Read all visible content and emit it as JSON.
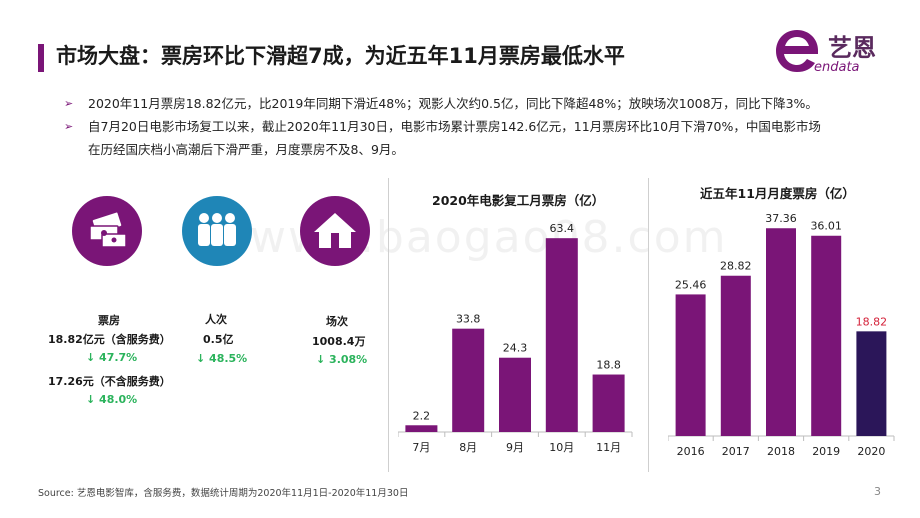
{
  "header": {
    "title": "市场大盘：票房环比下滑超7成，为近五年11月票房最低水平"
  },
  "logo": {
    "name": "艺恩",
    "sub": "endata"
  },
  "watermark": "www.baogao08.com",
  "bullets": [
    {
      "lines": [
        "2020年11月票房18.82亿元，比2019年同期下滑近48%；观影人次约0.5亿，同比下降超48%；放映场次1008万，同比下降3%。"
      ]
    },
    {
      "lines": [
        "自7月20日电影市场复工以来，截止2020年11月30日，电影市场累计票房142.6亿元，11月票房环比10月下滑70%，中国电影市场",
        "在历经国庆档小高潮后下滑严重，月度票房不及8、9月。"
      ]
    }
  ],
  "bullet_marker": "➢",
  "stats": {
    "box_office": {
      "label": "票房",
      "value1": "18.82亿元（含服务费）",
      "change1": "↓ 47.7%",
      "value2": "17.26元（不含服务费）",
      "change2": "↓ 48.0%"
    },
    "attendance": {
      "label": "人次",
      "value": "0.5亿",
      "change": "↓ 48.5%"
    },
    "screenings": {
      "label": "场次",
      "value": "1008.4万",
      "change": "↓ 3.08%"
    }
  },
  "colors": {
    "purple": "#7a1577",
    "teal": "#1f86b7",
    "dark_navy": "#2b1659",
    "green": "#2bb35c",
    "highlight_red": "#d4223a"
  },
  "chart_data": [
    {
      "type": "bar",
      "title": "2020年电影复工月票房（亿）",
      "categories": [
        "7月",
        "8月",
        "9月",
        "10月",
        "11月"
      ],
      "values": [
        2.2,
        33.8,
        24.3,
        63.4,
        18.8
      ],
      "ylim": [
        0,
        70
      ],
      "xlabel": "",
      "ylabel": ""
    },
    {
      "type": "bar",
      "title": "近五年11月月度票房（亿）",
      "categories": [
        "2016",
        "2017",
        "2018",
        "2019",
        "2020"
      ],
      "values": [
        25.46,
        28.82,
        37.36,
        36.01,
        18.82
      ],
      "ylim": [
        0,
        41
      ],
      "xlabel": "",
      "ylabel": "",
      "highlight_index": 4
    }
  ],
  "footer": {
    "source": "Source:   艺恩电影智库，含服务费，数据统计周期为2020年11月1日-2020年11月30日",
    "page": "3"
  }
}
